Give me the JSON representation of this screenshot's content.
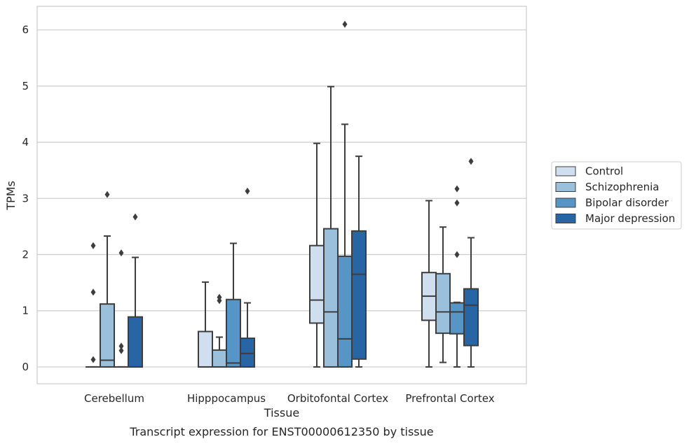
{
  "chart_data": {
    "type": "box",
    "title": "Transcript expression for ENST00000612350 by tissue",
    "xlabel": "Tissue",
    "ylabel": "TPMs",
    "ylim": [
      -0.3,
      6.42
    ],
    "yticks": [
      0,
      1,
      2,
      3,
      4,
      5,
      6
    ],
    "grid": true,
    "legend_position": "right",
    "categories": [
      "Cerebellum",
      "Hipppocampus",
      "Orbitofontal Cortex",
      "Prefrontal Cortex"
    ],
    "series": [
      {
        "name": "Control",
        "color": "#d0dff0",
        "boxes": [
          {
            "whislo": 0,
            "q1": 0,
            "med": 0,
            "q3": 0,
            "whishi": 0,
            "fliers": [
              0.13,
              1.33,
              2.16
            ]
          },
          {
            "whislo": 0,
            "q1": 0,
            "med": 0,
            "q3": 0.63,
            "whishi": 1.51,
            "fliers": []
          },
          {
            "whislo": 0,
            "q1": 0.78,
            "med": 1.19,
            "q3": 2.16,
            "whishi": 3.98,
            "fliers": []
          },
          {
            "whislo": 0,
            "q1": 0.83,
            "med": 1.26,
            "q3": 1.68,
            "whishi": 2.96,
            "fliers": []
          }
        ]
      },
      {
        "name": "Schizophrenia",
        "color": "#9ac0db",
        "boxes": [
          {
            "whislo": 0,
            "q1": 0,
            "med": 0.12,
            "q3": 1.12,
            "whishi": 2.33,
            "fliers": [
              3.07
            ]
          },
          {
            "whislo": 0,
            "q1": 0,
            "med": 0,
            "q3": 0.3,
            "whishi": 0.53,
            "fliers": [
              1.18,
              1.24
            ]
          },
          {
            "whislo": 0,
            "q1": 0,
            "med": 0.98,
            "q3": 2.46,
            "whishi": 4.99,
            "fliers": []
          },
          {
            "whislo": 0.08,
            "q1": 0.6,
            "med": 0.98,
            "q3": 1.66,
            "whishi": 2.49,
            "fliers": []
          }
        ]
      },
      {
        "name": "Bipolar disorder",
        "color": "#5596c6",
        "boxes": [
          {
            "whislo": 0,
            "q1": 0,
            "med": 0,
            "q3": 0,
            "whishi": 0,
            "fliers": [
              0.29,
              0.37,
              2.03
            ]
          },
          {
            "whislo": 0,
            "q1": 0,
            "med": 0.07,
            "q3": 1.2,
            "whishi": 2.2,
            "fliers": []
          },
          {
            "whislo": 0,
            "q1": 0,
            "med": 0.5,
            "q3": 1.97,
            "whishi": 4.32,
            "fliers": [
              6.1
            ]
          },
          {
            "whislo": 0,
            "q1": 0.59,
            "med": 0.98,
            "q3": 1.14,
            "whishi": 1.15,
            "fliers": [
              2.0,
              2.92,
              3.17
            ]
          }
        ]
      },
      {
        "name": "Major depression",
        "color": "#2865a4",
        "boxes": [
          {
            "whislo": 0,
            "q1": 0,
            "med": 0,
            "q3": 0.89,
            "whishi": 1.95,
            "fliers": [
              2.67
            ]
          },
          {
            "whislo": 0,
            "q1": 0,
            "med": 0.24,
            "q3": 0.51,
            "whishi": 1.14,
            "fliers": [
              3.13
            ]
          },
          {
            "whislo": 0,
            "q1": 0.14,
            "med": 1.65,
            "q3": 2.42,
            "whishi": 3.75,
            "fliers": []
          },
          {
            "whislo": 0,
            "q1": 0.38,
            "med": 1.1,
            "q3": 1.39,
            "whishi": 2.3,
            "fliers": [
              3.66
            ]
          }
        ]
      }
    ]
  }
}
